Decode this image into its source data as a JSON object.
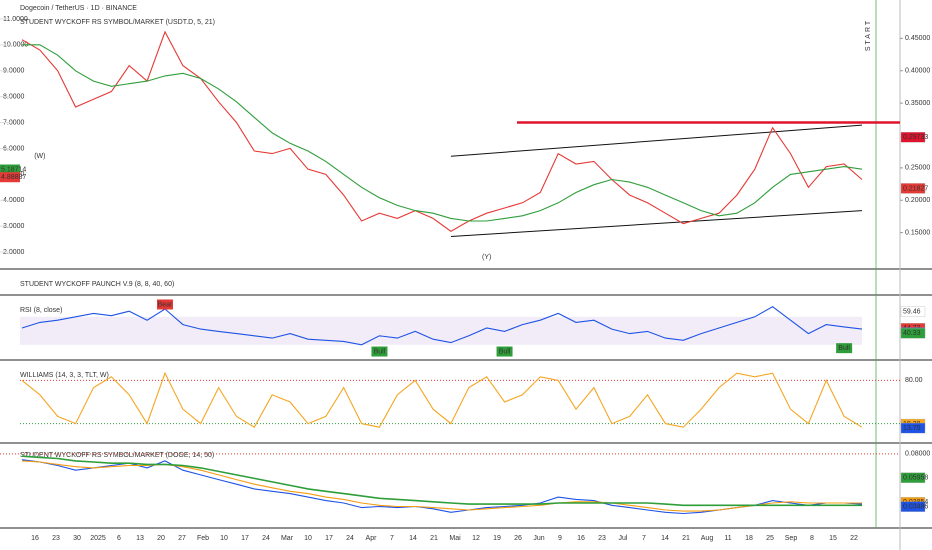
{
  "header": {
    "title": "Dogecoin / TetherUS · 1D · BINANCE",
    "time_labels": [
      "16",
      "23",
      "30",
      "2025",
      "6",
      "13",
      "20",
      "27",
      "Feb",
      "10",
      "17",
      "24",
      "Mar",
      "10",
      "17",
      "24",
      "Apr",
      "7",
      "14",
      "21",
      "Mai",
      "12",
      "19",
      "26",
      "Jun",
      "9",
      "16",
      "23",
      "Jul",
      "7",
      "14",
      "21",
      "Aug",
      "11",
      "18",
      "25",
      "Sep",
      "8",
      "15",
      "22"
    ]
  },
  "chart_data": [
    {
      "type": "line",
      "title": "STUDENT WYCKOFF RS SYMBOL/MARKET (USDT.D, 5, 21)",
      "ylim": [
        1.5,
        11.5
      ],
      "yticks": [
        {
          "value": 2,
          "label": "2.0000"
        },
        {
          "value": 3,
          "label": "3.0000"
        },
        {
          "value": 4,
          "label": "4.0000"
        },
        {
          "value": 5,
          "label": "5.0000"
        },
        {
          "value": 6,
          "label": "6.0000"
        },
        {
          "value": 7,
          "label": "7.0000"
        },
        {
          "value": 8,
          "label": "8.0000"
        },
        {
          "value": 9,
          "label": "9.0000"
        },
        {
          "value": 10,
          "label": "10.0000"
        },
        {
          "value": 11,
          "label": "11.0000"
        }
      ],
      "y2lim": [
        0.1,
        0.5
      ],
      "y2ticks": [
        {
          "value": 0.15,
          "label": "0.15000"
        },
        {
          "value": 0.2,
          "label": "0.20000"
        },
        {
          "value": 0.25,
          "label": "0.25000"
        },
        {
          "value": 0.35,
          "label": "0.35000"
        },
        {
          "value": 0.4,
          "label": "0.40000"
        },
        {
          "value": 0.45,
          "label": "0.45000"
        }
      ],
      "series": [
        {
          "name": "Price",
          "color": "#e53935",
          "values": [
            10.2,
            9.8,
            9.0,
            7.6,
            7.9,
            8.2,
            9.2,
            8.6,
            10.5,
            9.2,
            8.7,
            7.8,
            7.0,
            5.9,
            5.8,
            6.0,
            5.2,
            5.0,
            4.2,
            3.2,
            3.5,
            3.3,
            3.6,
            3.3,
            2.8,
            3.2,
            3.5,
            3.7,
            3.9,
            4.3,
            5.8,
            5.4,
            5.5,
            4.8,
            4.2,
            3.9,
            3.5,
            3.1,
            3.3,
            3.5,
            4.2,
            5.2,
            6.8,
            5.8,
            4.5,
            5.3,
            5.4,
            4.8
          ]
        },
        {
          "name": "MA",
          "color": "#2e9e3a",
          "values": [
            10.0,
            10.0,
            9.6,
            9.0,
            8.6,
            8.4,
            8.5,
            8.6,
            8.8,
            8.9,
            8.7,
            8.3,
            7.8,
            7.2,
            6.6,
            6.2,
            5.9,
            5.5,
            5.0,
            4.5,
            4.1,
            3.8,
            3.6,
            3.5,
            3.3,
            3.2,
            3.2,
            3.3,
            3.4,
            3.6,
            3.9,
            4.3,
            4.6,
            4.8,
            4.7,
            4.5,
            4.2,
            3.9,
            3.6,
            3.4,
            3.5,
            3.9,
            4.5,
            5.0,
            5.1,
            5.2,
            5.3,
            5.2
          ]
        }
      ],
      "trendlines": [
        {
          "x": [
            24,
            47
          ],
          "y": [
            5.7,
            6.9
          ]
        },
        {
          "x": [
            24,
            47
          ],
          "y": [
            2.6,
            3.6
          ]
        }
      ],
      "level": {
        "value": 7.0,
        "color": "#e0132f"
      },
      "left_tags": [
        {
          "value": 5.18714,
          "color": "#2e9e3a"
        },
        {
          "value": 4.88887,
          "color": "#e53935"
        }
      ],
      "right_tags": [
        {
          "value": 0.29733,
          "label": "0.29733",
          "color": "#e0132f"
        },
        {
          "value": 0.21827,
          "label": "0.21827",
          "color": "#e53935"
        }
      ],
      "annotations": [
        {
          "text": "(W)",
          "index": 1,
          "value": 5.7,
          "color": "#2e9e3a"
        },
        {
          "text": "(Y)",
          "index": 26,
          "value": 1.8,
          "color": "#2e9e3a"
        }
      ],
      "marker": "START"
    },
    {
      "type": "line",
      "title": "STUDENT WYCKOFF PAUNCH V.9 (8, 8, 40, 60)"
    },
    {
      "type": "line",
      "title": "RSI (8, close)",
      "ylim": [
        20,
        70
      ],
      "band": [
        30,
        55
      ],
      "series": [
        {
          "name": "RSI",
          "color": "#1e53e5",
          "values": [
            45,
            50,
            52,
            55,
            58,
            56,
            60,
            52,
            62,
            48,
            44,
            42,
            40,
            38,
            36,
            40,
            35,
            34,
            33,
            30,
            38,
            36,
            42,
            35,
            32,
            38,
            45,
            42,
            48,
            52,
            58,
            50,
            52,
            44,
            40,
            42,
            36,
            34,
            40,
            45,
            50,
            55,
            64,
            52,
            40,
            48,
            46,
            44
          ]
        }
      ],
      "right_tags": [
        {
          "value": 59.46,
          "color": "#ffffff"
        },
        {
          "value": 44.73,
          "color": "#e53935"
        },
        {
          "value": 40.92,
          "color": "#1e53e5"
        },
        {
          "value": 40.33,
          "color": "#2e9e3a"
        }
      ],
      "annotations": [
        {
          "text": "Bear",
          "index": 8,
          "value": 66,
          "color": "#e53935"
        },
        {
          "text": "Bull",
          "index": 20,
          "value": 24,
          "color": "#2e9e3a"
        },
        {
          "text": "Bull",
          "index": 27,
          "value": 24,
          "color": "#2e9e3a"
        },
        {
          "text": "Bull",
          "index": 46,
          "value": 27,
          "color": "#2e9e3a"
        }
      ]
    },
    {
      "type": "line",
      "title": "WILLIAMS (14, 3, 3, TLT, W)",
      "ylim": [
        0,
        100
      ],
      "series": [
        {
          "name": "%R",
          "color": "#f5a623",
          "values": [
            80,
            60,
            30,
            20,
            70,
            85,
            60,
            20,
            90,
            40,
            20,
            70,
            30,
            15,
            60,
            50,
            20,
            30,
            70,
            20,
            15,
            60,
            80,
            40,
            20,
            70,
            85,
            50,
            60,
            85,
            80,
            40,
            70,
            20,
            30,
            60,
            20,
            15,
            40,
            70,
            90,
            85,
            90,
            40,
            20,
            80,
            30,
            15
          ]
        }
      ],
      "levels": [
        {
          "value": 80,
          "label": "80.00",
          "color": "#e53935"
        },
        {
          "value": 20,
          "color": "#2e9e3a"
        }
      ],
      "right_tags": [
        {
          "value": 19.38,
          "color": "#f5a623"
        },
        {
          "value": 13.75,
          "color": "#1e53e5"
        }
      ]
    },
    {
      "type": "line",
      "title": "STUDENT WYCKOFF RS SYMBOL/MARKET (DOGE, 14, 50)",
      "ylim": [
        0.02,
        0.085
      ],
      "yticks": [
        {
          "value": 0.08,
          "label": "0.08000"
        }
      ],
      "series": [
        {
          "name": "RS",
          "color": "#1e53e5",
          "values": [
            0.075,
            0.073,
            0.07,
            0.066,
            0.068,
            0.07,
            0.072,
            0.068,
            0.074,
            0.066,
            0.062,
            0.058,
            0.054,
            0.05,
            0.048,
            0.046,
            0.043,
            0.04,
            0.038,
            0.034,
            0.035,
            0.034,
            0.035,
            0.033,
            0.03,
            0.032,
            0.034,
            0.035,
            0.036,
            0.038,
            0.043,
            0.041,
            0.04,
            0.036,
            0.034,
            0.032,
            0.03,
            0.029,
            0.03,
            0.032,
            0.034,
            0.036,
            0.04,
            0.038,
            0.036,
            0.038,
            0.038,
            0.037
          ]
        },
        {
          "name": "Fast",
          "color": "#f39c12",
          "values": [
            0.074,
            0.073,
            0.071,
            0.069,
            0.068,
            0.069,
            0.07,
            0.07,
            0.071,
            0.069,
            0.066,
            0.062,
            0.058,
            0.054,
            0.051,
            0.048,
            0.046,
            0.043,
            0.041,
            0.038,
            0.036,
            0.035,
            0.035,
            0.034,
            0.033,
            0.032,
            0.033,
            0.034,
            0.035,
            0.036,
            0.038,
            0.039,
            0.039,
            0.038,
            0.036,
            0.034,
            0.032,
            0.031,
            0.031,
            0.032,
            0.034,
            0.036,
            0.038,
            0.039,
            0.038,
            0.038,
            0.038,
            0.038
          ]
        },
        {
          "name": "Slow",
          "color": "#2e9e3a",
          "values": [
            0.078,
            0.077,
            0.076,
            0.074,
            0.073,
            0.072,
            0.072,
            0.071,
            0.071,
            0.07,
            0.068,
            0.065,
            0.062,
            0.059,
            0.056,
            0.053,
            0.05,
            0.048,
            0.046,
            0.044,
            0.042,
            0.041,
            0.04,
            0.039,
            0.038,
            0.037,
            0.037,
            0.037,
            0.037,
            0.037,
            0.038,
            0.038,
            0.038,
            0.038,
            0.038,
            0.038,
            0.037,
            0.036,
            0.036,
            0.036,
            0.036,
            0.036,
            0.036,
            0.036,
            0.036,
            0.036,
            0.036,
            0.036
          ]
        }
      ],
      "right_tags": [
        {
          "value": 0.05958,
          "color": "#2e9e3a"
        },
        {
          "value": 0.03854,
          "color": "#f39c12"
        },
        {
          "value": 0.03486,
          "color": "#1e53e5"
        }
      ]
    }
  ]
}
